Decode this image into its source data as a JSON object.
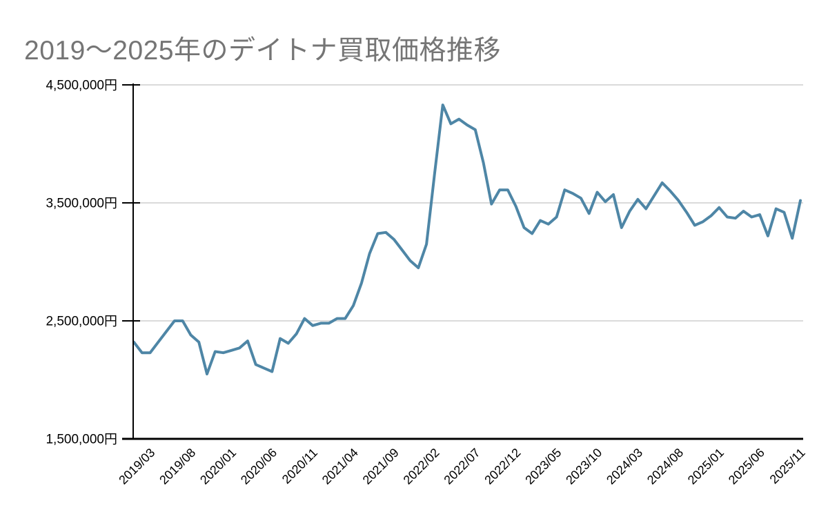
{
  "chart": {
    "title": "2019〜2025年のデイトナ買取価格推移",
    "title_color": "#757575"
  },
  "chart_data": {
    "type": "line",
    "title": "2019〜2025年のデイトナ買取価格推移",
    "unit": "円",
    "grid": true,
    "legend": false,
    "xlabel": "",
    "ylabel": "",
    "ylim": [
      1500000,
      4500000
    ],
    "y_ticks": [
      {
        "value": 4500000,
        "label": "4,500,000円"
      },
      {
        "value": 3500000,
        "label": "3,500,000円"
      },
      {
        "value": 2500000,
        "label": "2,500,000円"
      },
      {
        "value": 1500000,
        "label": "1,500,000円"
      }
    ],
    "x_tick_labels": [
      "2019/03",
      "2019/08",
      "2020/01",
      "2020/06",
      "2020/11",
      "2021/04",
      "2021/09",
      "2022/02",
      "2022/07",
      "2022/12",
      "2023/05",
      "2023/10",
      "2024/03",
      "2024/08",
      "2025/01",
      "2025/06",
      "2025/11"
    ],
    "x_tick_indices": [
      2,
      7,
      12,
      17,
      22,
      27,
      32,
      37,
      42,
      47,
      52,
      57,
      62,
      67,
      72,
      77,
      82
    ],
    "x": [
      "2019/01",
      "2019/02",
      "2019/03",
      "2019/04",
      "2019/05",
      "2019/06",
      "2019/07",
      "2019/08",
      "2019/09",
      "2019/10",
      "2019/11",
      "2019/12",
      "2020/01",
      "2020/02",
      "2020/03",
      "2020/04",
      "2020/05",
      "2020/06",
      "2020/07",
      "2020/08",
      "2020/09",
      "2020/10",
      "2020/11",
      "2020/12",
      "2021/01",
      "2021/02",
      "2021/03",
      "2021/04",
      "2021/05",
      "2021/06",
      "2021/07",
      "2021/08",
      "2021/09",
      "2021/10",
      "2021/11",
      "2021/12",
      "2022/01",
      "2022/02",
      "2022/03",
      "2022/04",
      "2022/05",
      "2022/06",
      "2022/07",
      "2022/08",
      "2022/09",
      "2022/10",
      "2022/11",
      "2022/12",
      "2023/01",
      "2023/02",
      "2023/03",
      "2023/04",
      "2023/05",
      "2023/06",
      "2023/07",
      "2023/08",
      "2023/09",
      "2023/10",
      "2023/11",
      "2023/12",
      "2024/01",
      "2024/02",
      "2024/03",
      "2024/04",
      "2024/05",
      "2024/06",
      "2024/07",
      "2024/08",
      "2024/09",
      "2024/10",
      "2024/11",
      "2024/12",
      "2025/01",
      "2025/02",
      "2025/03",
      "2025/04",
      "2025/05",
      "2025/06",
      "2025/07",
      "2025/08",
      "2025/09",
      "2025/10",
      "2025/11"
    ],
    "values": [
      2320000,
      2230000,
      2230000,
      2320000,
      2410000,
      2500000,
      2500000,
      2380000,
      2320000,
      2050000,
      2240000,
      2230000,
      2250000,
      2270000,
      2330000,
      2130000,
      2100000,
      2070000,
      2350000,
      2310000,
      2390000,
      2520000,
      2460000,
      2480000,
      2480000,
      2520000,
      2520000,
      2630000,
      2820000,
      3070000,
      3240000,
      3250000,
      3190000,
      3100000,
      3010000,
      2950000,
      3150000,
      3750000,
      4330000,
      4170000,
      4210000,
      4160000,
      4120000,
      3840000,
      3490000,
      3610000,
      3610000,
      3470000,
      3290000,
      3240000,
      3350000,
      3320000,
      3380000,
      3610000,
      3580000,
      3540000,
      3410000,
      3590000,
      3510000,
      3570000,
      3290000,
      3430000,
      3530000,
      3450000,
      3560000,
      3670000,
      3600000,
      3520000,
      3420000,
      3310000,
      3340000,
      3390000,
      3460000,
      3380000,
      3370000,
      3430000,
      3380000,
      3400000,
      3220000,
      3450000,
      3420000,
      3200000,
      3520000
    ],
    "line_color": "#4E86A6",
    "grid_color": "#DADADA",
    "axis_color": "#000000",
    "label_color": "#000000"
  }
}
